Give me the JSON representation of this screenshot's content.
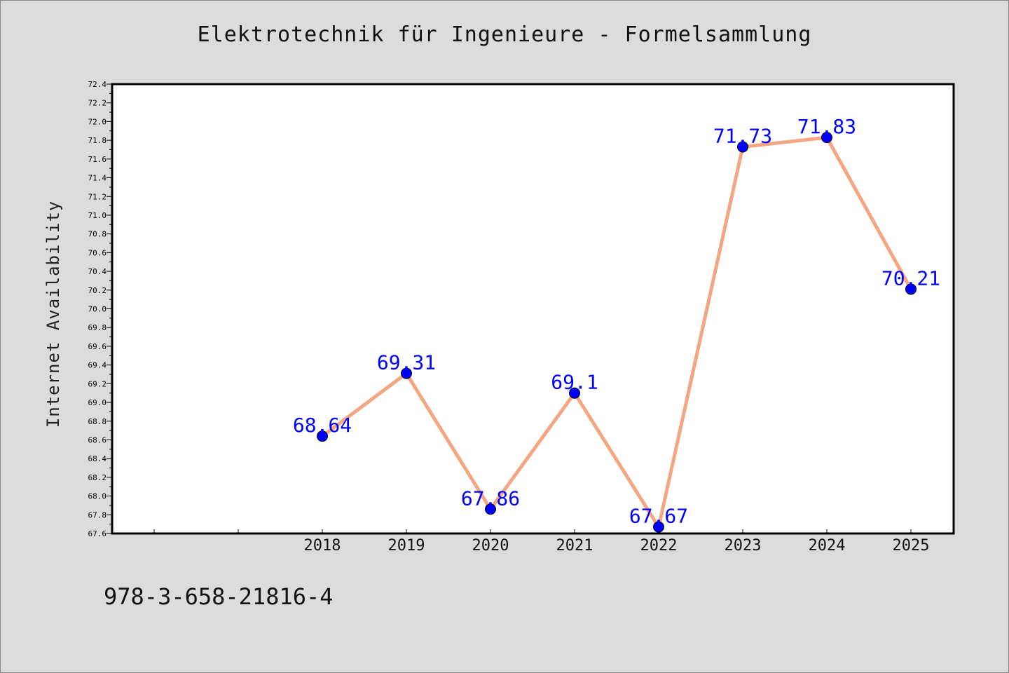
{
  "title": "Elektrotechnik für Ingenieure - Formelsammlung",
  "footer_text": "978-3-658-21816-4",
  "colors": {
    "background": "#dcdcdc",
    "plot_background": "#ffffff",
    "line": "#f4a582",
    "marker": "#0000ff",
    "data_label": "#0000ff"
  },
  "chart_data": {
    "type": "line",
    "title": "Elektrotechnik für Ingenieure - Formelsammlung",
    "xlabel": "",
    "ylabel": "Internet Availability",
    "x": [
      "2018",
      "2019",
      "2020",
      "2021",
      "2022",
      "2023",
      "2024",
      "2025"
    ],
    "series": [
      {
        "values": [
          68.64,
          69.31,
          67.86,
          69.1,
          67.67,
          71.73,
          71.83,
          70.21
        ],
        "labels": [
          "68.64",
          "69.31",
          "67.86",
          "69.1",
          "67.67",
          "71.73",
          "71.83",
          "70.21"
        ]
      }
    ],
    "ylim": [
      67.6,
      72.4
    ],
    "yticks": [
      "67.6",
      "67.8",
      "68.0",
      "68.2",
      "68.4",
      "68.6",
      "68.8",
      "69.0",
      "69.2",
      "69.4",
      "69.6",
      "69.8",
      "70.0",
      "70.2",
      "70.4",
      "70.6",
      "70.8",
      "71.0",
      "71.2",
      "71.4",
      "71.6",
      "71.8",
      "72.0",
      "72.2",
      "72.4"
    ],
    "grid": false,
    "legend": "none"
  }
}
